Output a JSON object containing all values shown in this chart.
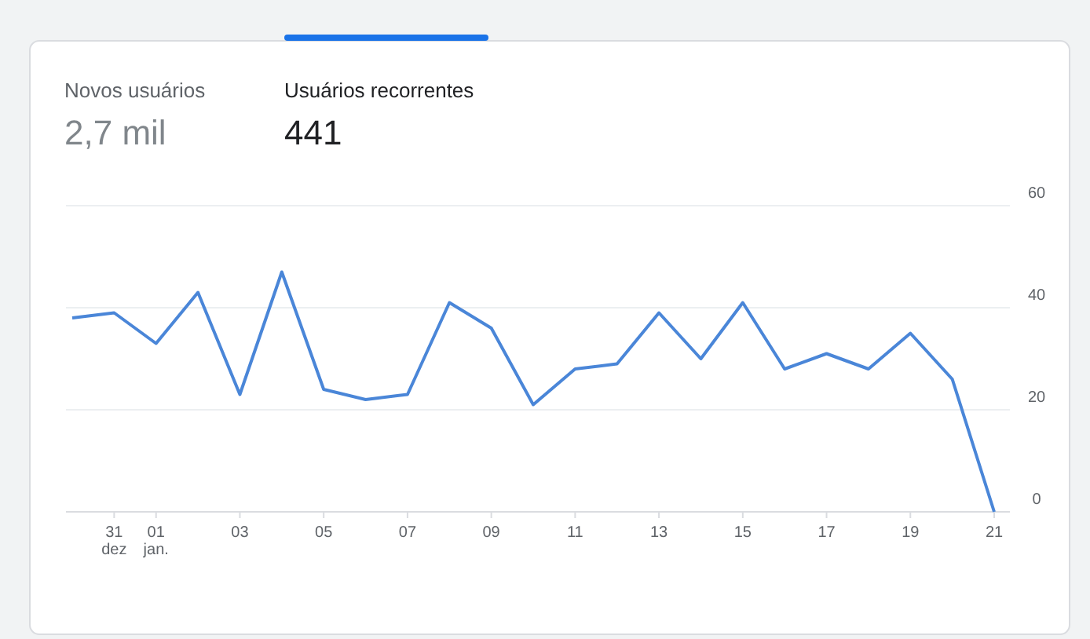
{
  "chart_data": {
    "type": "line",
    "annotations": [
      "Novos usuários",
      "2,7 mil",
      "Usuários recorrentes",
      "441"
    ],
    "categories": [
      null,
      "31 dez",
      "01 jan.",
      null,
      "03",
      null,
      "05",
      null,
      "07",
      null,
      "09",
      null,
      "11",
      null,
      "13",
      null,
      "15",
      null,
      "17",
      null,
      "19",
      null,
      "21"
    ],
    "series": [
      {
        "color": "#4a86d8",
        "values": [
          38,
          39,
          33,
          43,
          23,
          47,
          24,
          22,
          23,
          41,
          36,
          21,
          28,
          29,
          39,
          30,
          41,
          28,
          31,
          28,
          35,
          26,
          0
        ]
      }
    ],
    "ylim": [
      0,
      60
    ],
    "yticks": [
      0,
      20,
      40,
      60
    ],
    "grid": "y",
    "marker": "none",
    "line_style": "solid"
  }
}
